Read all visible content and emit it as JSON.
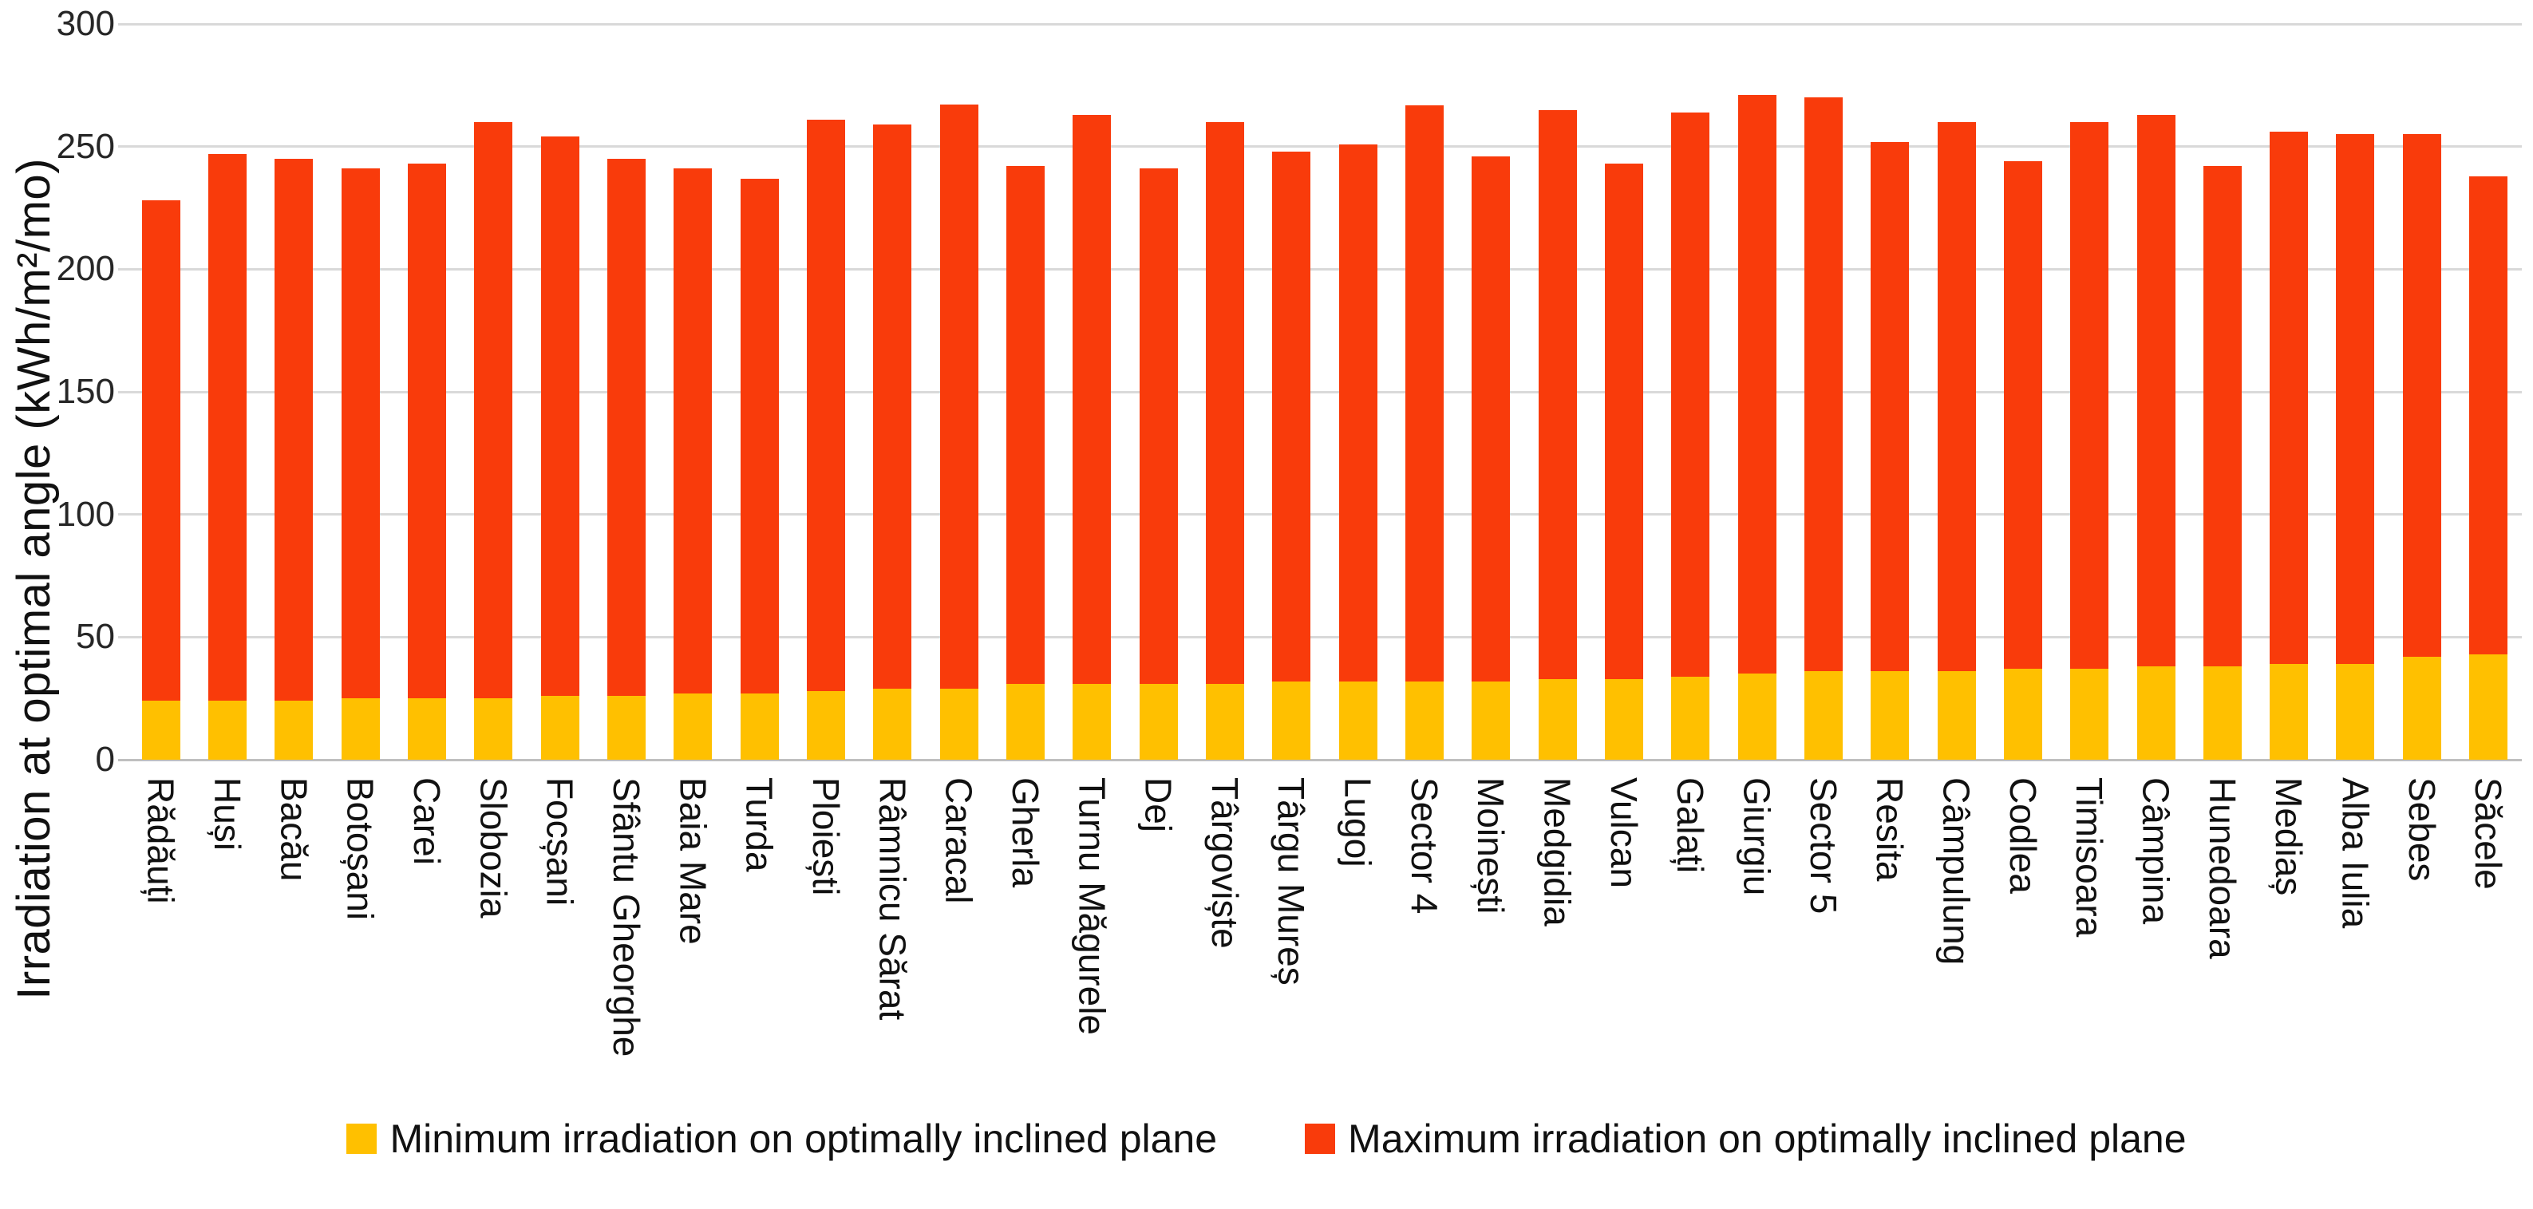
{
  "chart_data": {
    "type": "bar",
    "stacked": true,
    "title": "",
    "xlabel": "",
    "ylabel": "Irradiation at optimal angle (kWh/m²/mo)",
    "ylim": [
      0,
      300
    ],
    "yticks": [
      0,
      50,
      100,
      150,
      200,
      250,
      300
    ],
    "grid": true,
    "legend_position": "bottom",
    "bar_top_represents": "maximum irradiation value; yellow segment top represents minimum irradiation value",
    "categories": [
      "Rădăuți",
      "Huși",
      "Bacău",
      "Botoșani",
      "Carei",
      "Slobozia",
      "Focșani",
      "Sfântu Gheorghe",
      "Baia Mare",
      "Turda",
      "Ploiești",
      "Râmnicu Sărat",
      "Caracal",
      "Gherla",
      "Turnu Măgurele",
      "Dej",
      "Târgoviște",
      "Târgu Mureș",
      "Lugoj",
      "Sector 4",
      "Moinești",
      "Medgidia",
      "Vulcan",
      "Galați",
      "Giurgiu",
      "Sector 5",
      "Resita",
      "Câmpulung",
      "Codlea",
      "Timisoara",
      "Câmpina",
      "Hunedoara",
      "Mediaș",
      "Alba Iulia",
      "Sebes",
      "Săcele"
    ],
    "series": [
      {
        "name": "Minimum irradiation on optimally inclined plane",
        "color": "#FFC000",
        "values": [
          24,
          24,
          24,
          25,
          25,
          25,
          26,
          26,
          27,
          27,
          28,
          29,
          29,
          31,
          31,
          31,
          31,
          32,
          32,
          32,
          32,
          33,
          33,
          34,
          35,
          36,
          36,
          36,
          37,
          37,
          38,
          38,
          39,
          39,
          42,
          43
        ]
      },
      {
        "name": "Maximum irradiation on optimally inclined plane",
        "color": "#F93B0B",
        "values": [
          228,
          247,
          245,
          241,
          243,
          260,
          254,
          245,
          241,
          237,
          261,
          259,
          267,
          242,
          263,
          241,
          260,
          248,
          251,
          267,
          246,
          265,
          243,
          264,
          271,
          270,
          252,
          260,
          244,
          260,
          263,
          242,
          256,
          255,
          255,
          238
        ]
      }
    ],
    "colors": {
      "gridline": "#D9D9D9",
      "axis_line": "#BFBFBF",
      "text": "#111111"
    }
  },
  "legend": {
    "min_label": "Minimum irradiation on optimally inclined plane",
    "max_label": "Maximum irradiation on optimally inclined plane"
  }
}
